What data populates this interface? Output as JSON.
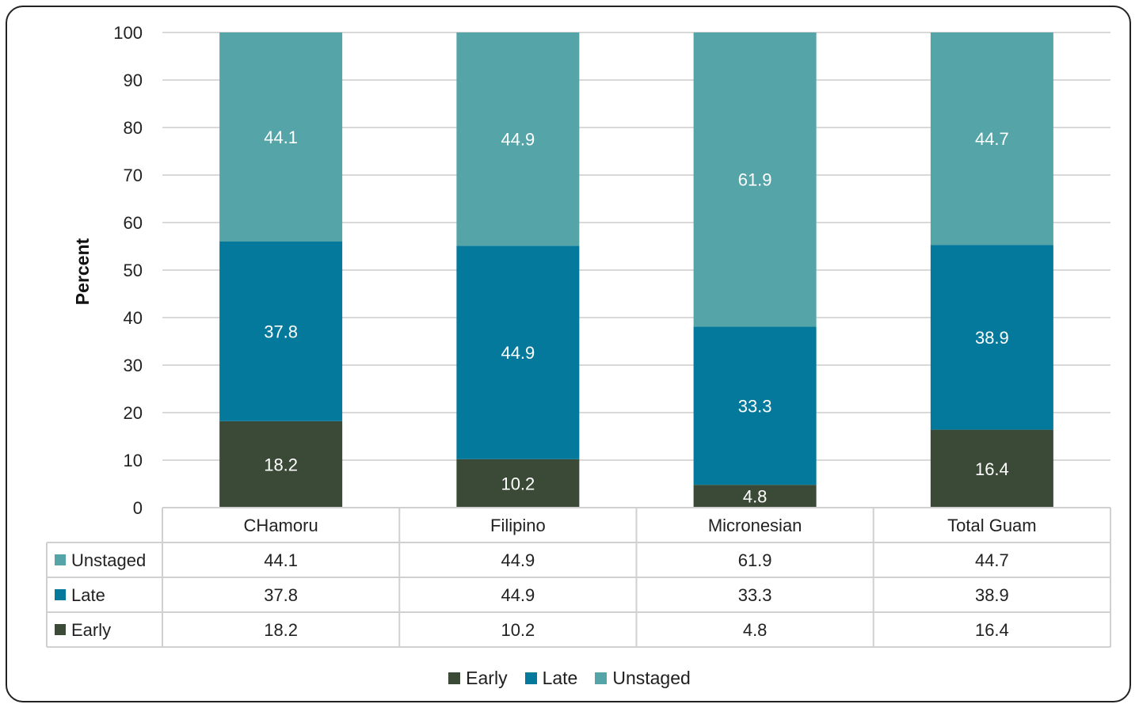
{
  "chart_data": {
    "type": "bar",
    "stacked": true,
    "categories": [
      "CHamoru",
      "Filipino",
      "Micronesian",
      "Total Guam"
    ],
    "series": [
      {
        "name": "Early",
        "values": [
          18.2,
          10.2,
          4.8,
          16.4
        ],
        "color": "#3b4a36"
      },
      {
        "name": "Late",
        "values": [
          37.8,
          44.9,
          33.3,
          38.9
        ],
        "color": "#04799b"
      },
      {
        "name": "Unstaged",
        "values": [
          44.1,
          44.9,
          61.9,
          44.7
        ],
        "color": "#55a4a8"
      }
    ],
    "ylabel": "Percent",
    "ylim": [
      0,
      100
    ],
    "yticks": [
      0,
      10,
      20,
      30,
      40,
      50,
      60,
      70,
      80,
      90,
      100
    ],
    "grid": true,
    "legend_position": "bottom",
    "data_table": true
  }
}
